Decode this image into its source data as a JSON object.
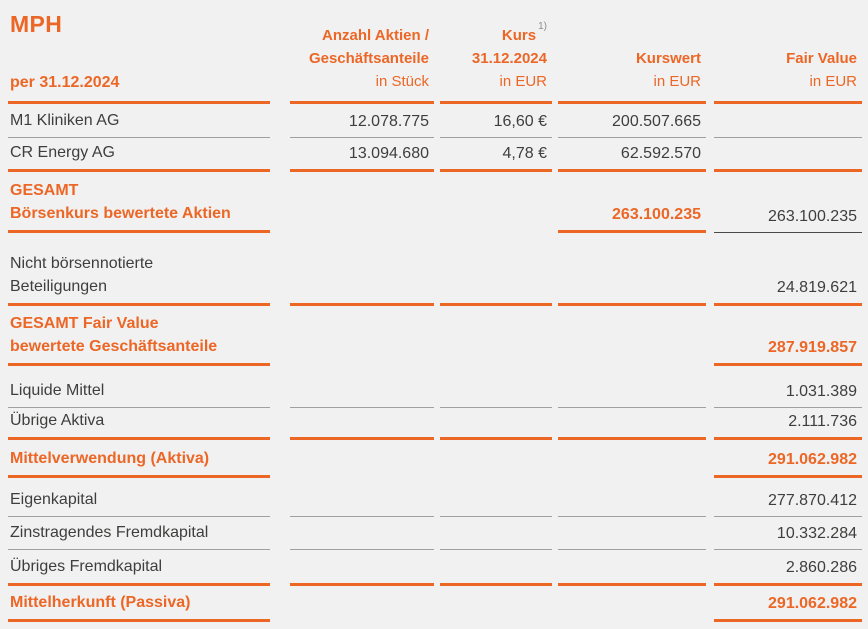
{
  "header": {
    "title": "MPH",
    "date_label": "per 31.12.2024",
    "columns": [
      {
        "lines": [
          "Anzahl Aktien /",
          "Geschäftsanteile"
        ],
        "sup": "",
        "unit": "in Stück"
      },
      {
        "lines": [
          "Kurs",
          "31.12.2024"
        ],
        "sup": "1)",
        "unit": "in EUR"
      },
      {
        "lines": [
          "Kurswert"
        ],
        "sup": "",
        "unit": "in EUR"
      },
      {
        "lines": [
          "Fair Value"
        ],
        "sup": "",
        "unit": "in EUR"
      }
    ]
  },
  "colors": {
    "accent_orange": "#EC6726",
    "text_dark": "#3E3E3D",
    "separator_gray": "#A0A0A0",
    "separator_dark": "#4A4A49",
    "background": "#F1F1F2"
  },
  "rows": [
    {
      "label_lines": [
        "M1 Kliniken AG"
      ],
      "label_style": "normal",
      "values": {
        "anzahl": "12.078.775",
        "kurs": "16,60 €",
        "kurswert": "200.507.665",
        "fair_value": ""
      },
      "value_styles": {},
      "borders": [
        "gray",
        "gray",
        "gray",
        "gray",
        "gray"
      ]
    },
    {
      "label_lines": [
        "CR Energy AG"
      ],
      "label_style": "normal",
      "values": {
        "anzahl": "13.094.680",
        "kurs": "4,78 €",
        "kurswert": "62.592.570",
        "fair_value": ""
      },
      "value_styles": {},
      "borders": [
        "orange",
        "orange",
        "orange",
        "orange",
        "orange"
      ]
    },
    {
      "label_lines": [
        "GESAMT",
        "Börsenkurs bewertete Aktien"
      ],
      "label_style": "total",
      "values": {
        "anzahl": "",
        "kurs": "",
        "kurswert": "263.100.235",
        "fair_value": "263.100.235"
      },
      "value_styles": {
        "kurswert": "orange"
      },
      "borders": [
        "orange",
        "none",
        "none",
        "orange",
        "dark"
      ]
    },
    {
      "label_lines": [
        "Nicht börsennotierte",
        "Beteiligungen"
      ],
      "label_style": "normal",
      "values": {
        "anzahl": "",
        "kurs": "",
        "kurswert": "",
        "fair_value": "24.819.621"
      },
      "value_styles": {},
      "borders": [
        "orange",
        "orange",
        "orange",
        "orange",
        "orange"
      ]
    },
    {
      "label_lines": [
        "GESAMT Fair Value",
        "bewertete Geschäftsanteile"
      ],
      "label_style": "total",
      "values": {
        "anzahl": "",
        "kurs": "",
        "kurswert": "",
        "fair_value": "287.919.857"
      },
      "value_styles": {
        "fair_value": "orange"
      },
      "borders": [
        "orange",
        "none",
        "none",
        "none",
        "orange"
      ]
    },
    {
      "label_lines": [
        "Liquide Mittel"
      ],
      "label_style": "normal",
      "values": {
        "anzahl": "",
        "kurs": "",
        "kurswert": "",
        "fair_value": "1.031.389"
      },
      "value_styles": {},
      "borders": [
        "gray",
        "gray",
        "gray",
        "gray",
        "gray"
      ]
    },
    {
      "label_lines": [
        "Übrige Aktiva"
      ],
      "label_style": "normal",
      "values": {
        "anzahl": "",
        "kurs": "",
        "kurswert": "",
        "fair_value": "2.111.736"
      },
      "value_styles": {},
      "borders": [
        "orange",
        "orange",
        "orange",
        "orange",
        "orange"
      ]
    },
    {
      "label_lines": [
        "Mittelverwendung (Aktiva)"
      ],
      "label_style": "total",
      "values": {
        "anzahl": "",
        "kurs": "",
        "kurswert": "",
        "fair_value": "291.062.982"
      },
      "value_styles": {
        "fair_value": "orange"
      },
      "borders": [
        "orange",
        "none",
        "none",
        "none",
        "orange"
      ]
    },
    {
      "label_lines": [
        "Eigenkapital"
      ],
      "label_style": "normal",
      "values": {
        "anzahl": "",
        "kurs": "",
        "kurswert": "",
        "fair_value": "277.870.412"
      },
      "value_styles": {},
      "borders": [
        "gray",
        "gray",
        "gray",
        "gray",
        "gray"
      ]
    },
    {
      "label_lines": [
        "Zinstragendes Fremdkapital"
      ],
      "label_style": "normal",
      "values": {
        "anzahl": "",
        "kurs": "",
        "kurswert": "",
        "fair_value": "10.332.284"
      },
      "value_styles": {},
      "borders": [
        "gray",
        "gray",
        "gray",
        "gray",
        "gray"
      ]
    },
    {
      "label_lines": [
        "Übriges Fremdkapital"
      ],
      "label_style": "normal",
      "values": {
        "anzahl": "",
        "kurs": "",
        "kurswert": "",
        "fair_value": "2.860.286"
      },
      "value_styles": {},
      "borders": [
        "orange",
        "orange",
        "orange",
        "orange",
        "orange"
      ]
    },
    {
      "label_lines": [
        "Mittelherkunft (Passiva)"
      ],
      "label_style": "total",
      "values": {
        "anzahl": "",
        "kurs": "",
        "kurswert": "",
        "fair_value": "291.062.982"
      },
      "value_styles": {
        "fair_value": "orange"
      },
      "borders": [
        "orange",
        "none",
        "none",
        "none",
        "orange"
      ]
    }
  ]
}
